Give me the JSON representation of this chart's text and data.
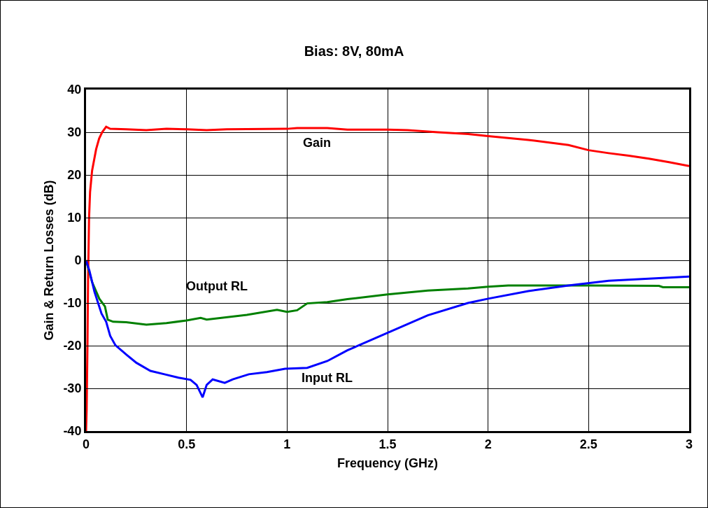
{
  "chart_data": {
    "type": "line",
    "title": "Bias: 8V, 80mA",
    "xlabel": "Frequency (GHz)",
    "ylabel": "Gain & Return Losses (dB)",
    "xlim": [
      0,
      3
    ],
    "xticks": [
      0,
      0.5,
      1,
      1.5,
      2,
      2.5,
      3
    ],
    "ylim": [
      -40,
      40
    ],
    "yticks": [
      -40,
      -30,
      -20,
      -10,
      0,
      10,
      20,
      30,
      40
    ],
    "grid": true,
    "legend": false,
    "marker": "none",
    "line_style": "solid",
    "series": [
      {
        "name": "Gain",
        "color": "#ff0000",
        "x": [
          0,
          0.003,
          0.007,
          0.01,
          0.015,
          0.02,
          0.03,
          0.05,
          0.065,
          0.08,
          0.1,
          0.12,
          0.2,
          0.3,
          0.4,
          0.5,
          0.6,
          0.7,
          1.0,
          1.05,
          1.2,
          1.3,
          1.5,
          1.6,
          1.75,
          1.9,
          2.0,
          2.2,
          2.4,
          2.5,
          2.6,
          2.7,
          2.8,
          2.9,
          3.0
        ],
        "values": [
          -40,
          -35,
          -20,
          -5,
          10,
          16,
          21,
          26,
          28.5,
          30,
          31.3,
          30.8,
          30.7,
          30.5,
          30.8,
          30.7,
          30.5,
          30.7,
          30.8,
          31,
          31,
          30.6,
          30.6,
          30.5,
          30,
          29.6,
          29.1,
          28.2,
          27,
          25.8,
          25.1,
          24.5,
          23.8,
          23,
          22.1
        ]
      },
      {
        "name": "Output RL",
        "color": "#008000",
        "x": [
          0,
          0.03,
          0.066,
          0.094,
          0.108,
          0.135,
          0.2,
          0.3,
          0.4,
          0.5,
          0.57,
          0.6,
          0.8,
          0.95,
          1.0,
          1.05,
          1.1,
          1.2,
          1.3,
          1.5,
          1.7,
          1.9,
          2.0,
          2.1,
          2.5,
          2.85,
          2.87,
          3.0
        ],
        "values": [
          0,
          -5.1,
          -9,
          -10.8,
          -13.9,
          -14.4,
          -14.5,
          -15.1,
          -14.7,
          -14.1,
          -13.5,
          -13.9,
          -12.8,
          -11.6,
          -12.1,
          -11.7,
          -10.1,
          -9.8,
          -9.1,
          -8,
          -7.1,
          -6.6,
          -6.2,
          -5.9,
          -5.9,
          -6,
          -6.3,
          -6.3
        ]
      },
      {
        "name": "Input RL",
        "color": "#0000ff",
        "x": [
          0,
          0.017,
          0.042,
          0.077,
          0.1,
          0.12,
          0.146,
          0.206,
          0.25,
          0.32,
          0.39,
          0.46,
          0.52,
          0.55,
          0.58,
          0.6,
          0.63,
          0.69,
          0.73,
          0.81,
          0.9,
          0.99,
          1.1,
          1.2,
          1.3,
          1.5,
          1.7,
          1.9,
          2.0,
          2.2,
          2.4,
          2.6,
          2.8,
          3.0
        ],
        "values": [
          0,
          -2.5,
          -7.4,
          -12.5,
          -14.4,
          -17.7,
          -19.9,
          -22.3,
          -24,
          -25.9,
          -26.7,
          -27.5,
          -28,
          -29.2,
          -32.1,
          -29.2,
          -27.9,
          -28.7,
          -27.9,
          -26.7,
          -26.2,
          -25.4,
          -25.2,
          -23.6,
          -21.1,
          -17,
          -12.9,
          -10,
          -9,
          -7.2,
          -5.9,
          -4.8,
          -4.3,
          -3.8
        ]
      }
    ]
  }
}
